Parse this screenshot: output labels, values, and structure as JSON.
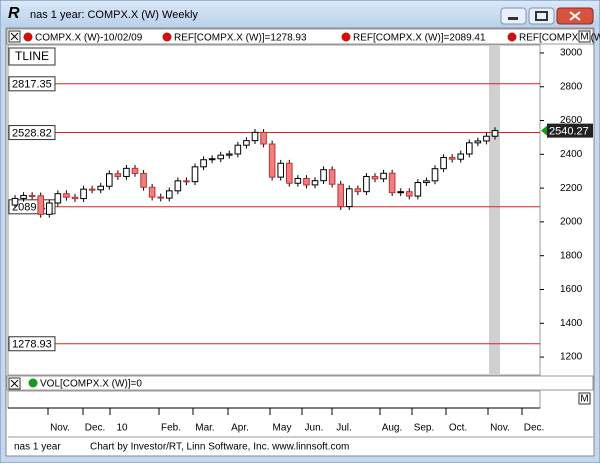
{
  "window": {
    "title": "nas 1 year: COMPX.X (W) Weekly"
  },
  "legend": [
    "COMPX.X (W)-10/02/09",
    "REF[COMPX.X (W)]=1278.93",
    "REF[COMPX.X (W)]=2089.41",
    "REF[COMPX.X (W)"
  ],
  "panel_label": "TLINE",
  "volume_legend": "VOL[COMPX.X (W)]=0",
  "footer": {
    "page": "nas 1 year",
    "credit": "Chart by Investor/RT, Linn Software, Inc. www.linnsoft.com"
  },
  "chart_data": {
    "type": "candlestick",
    "x_labels": [
      "Nov.",
      "Dec.",
      "10",
      "Feb.",
      "Mar.",
      "Apr.",
      "May",
      "Jun.",
      "Jul.",
      "Aug.",
      "Sep.",
      "Oct.",
      "Nov.",
      "Dec."
    ],
    "open": [
      2100,
      2139,
      2156,
      2154,
      2045,
      2112,
      2167,
      2146,
      2138,
      2194,
      2190,
      2211,
      2285,
      2269,
      2317,
      2287,
      2205,
      2147,
      2141,
      2184,
      2243,
      2238,
      2326,
      2368,
      2374,
      2395,
      2402,
      2454,
      2481,
      2530,
      2461,
      2265,
      2347,
      2229,
      2257,
      2219,
      2244,
      2309,
      2223,
      2091,
      2196,
      2179,
      2269,
      2255,
      2288,
      2173,
      2179,
      2153,
      2233,
      2243,
      2315,
      2381,
      2371,
      2402,
      2468,
      2479,
      2507
    ],
    "high": [
      2159,
      2176,
      2176,
      2174,
      2132,
      2187,
      2187,
      2166,
      2214,
      2214,
      2231,
      2305,
      2305,
      2337,
      2337,
      2307,
      2225,
      2167,
      2204,
      2263,
      2263,
      2346,
      2388,
      2394,
      2415,
      2422,
      2474,
      2501,
      2550,
      2550,
      2481,
      2367,
      2367,
      2277,
      2277,
      2264,
      2329,
      2329,
      2243,
      2216,
      2216,
      2289,
      2289,
      2308,
      2308,
      2199,
      2199,
      2253,
      2263,
      2335,
      2401,
      2401,
      2422,
      2488,
      2499,
      2527,
      2560
    ],
    "low": [
      2080,
      2119,
      2134,
      2025,
      2025,
      2092,
      2126,
      2118,
      2118,
      2170,
      2170,
      2191,
      2249,
      2249,
      2267,
      2185,
      2127,
      2121,
      2121,
      2164,
      2218,
      2218,
      2306,
      2348,
      2354,
      2375,
      2382,
      2434,
      2461,
      2441,
      2245,
      2245,
      2209,
      2209,
      2199,
      2199,
      2224,
      2203,
      2071,
      2071,
      2159,
      2159,
      2235,
      2235,
      2153,
      2153,
      2133,
      2133,
      2213,
      2223,
      2295,
      2351,
      2351,
      2382,
      2448,
      2459,
      2487
    ],
    "close": [
      2139,
      2156,
      2154,
      2045,
      2112,
      2167,
      2146,
      2138,
      2194,
      2190,
      2211,
      2285,
      2269,
      2317,
      2287,
      2205,
      2147,
      2141,
      2184,
      2243,
      2238,
      2326,
      2368,
      2374,
      2395,
      2402,
      2454,
      2481,
      2530,
      2461,
      2265,
      2347,
      2229,
      2257,
      2219,
      2244,
      2309,
      2223,
      2091,
      2196,
      2179,
      2269,
      2255,
      2288,
      2173,
      2179,
      2153,
      2233,
      2243,
      2315,
      2381,
      2371,
      2402,
      2468,
      2479,
      2507,
      2540.27
    ],
    "up_color": "#ffffff",
    "down_color": "#f08080",
    "line_color": "#e02020",
    "ref_lines": [
      2817.35,
      2528.82,
      2089.41,
      1278.93
    ],
    "ylim": [
      1094,
      3047
    ],
    "yticks": [
      1200,
      1400,
      1600,
      1800,
      2000,
      2200,
      2400,
      2600,
      2800,
      3000
    ]
  }
}
